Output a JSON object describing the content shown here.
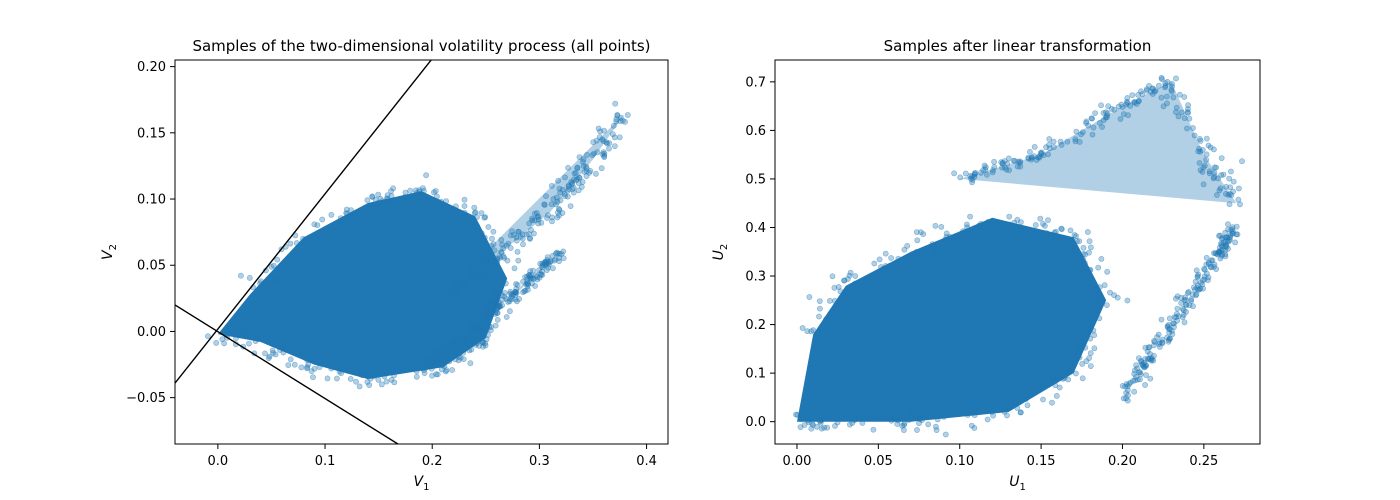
{
  "chart_data": [
    {
      "type": "scatter",
      "title": "Samples of the two-dimensional volatility process (all points)",
      "xlabel": "V",
      "xlabel_sub": "1",
      "ylabel": "V",
      "ylabel_sub": "2",
      "xlim": [
        -0.04,
        0.42
      ],
      "ylim": [
        -0.085,
        0.205
      ],
      "xticks": [
        0.0,
        0.1,
        0.2,
        0.3,
        0.4
      ],
      "xtick_labels": [
        "0.0",
        "0.1",
        "0.2",
        "0.3",
        "0.4"
      ],
      "yticks": [
        -0.05,
        0.0,
        0.05,
        0.1,
        0.15,
        0.2
      ],
      "ytick_labels": [
        "−0.05",
        "0.00",
        "0.05",
        "0.10",
        "0.15",
        "0.20"
      ],
      "marker_color": "#1f77b4",
      "lines": [
        {
          "color": "#000000",
          "x": [
            -0.04,
            0.2
          ],
          "y": [
            -0.039,
            0.206
          ]
        },
        {
          "color": "#000000",
          "x": [
            -0.04,
            0.168
          ],
          "y": [
            0.02,
            -0.085
          ]
        }
      ],
      "clusters": [
        {
          "x": [
            0.0,
            0.04,
            0.09,
            0.14,
            0.21,
            0.25,
            0.27,
            0.24,
            0.19,
            0.14,
            0.08,
            0.03
          ],
          "y": [
            -0.002,
            -0.008,
            -0.025,
            -0.036,
            -0.027,
            -0.005,
            0.04,
            0.087,
            0.106,
            0.097,
            0.071,
            0.028
          ]
        },
        {
          "x": [
            0.2,
            0.24,
            0.28,
            0.31,
            0.33,
            0.35,
            0.38
          ],
          "y": [
            0.02,
            0.045,
            0.07,
            0.09,
            0.11,
            0.13,
            0.165
          ]
        },
        {
          "x": [
            0.19,
            0.22,
            0.24,
            0.26,
            0.28,
            0.3,
            0.32
          ],
          "y": [
            -0.03,
            -0.01,
            0.0,
            0.02,
            0.03,
            0.045,
            0.06
          ]
        }
      ]
    },
    {
      "type": "scatter",
      "title": "Samples after linear transformation",
      "xlabel": "U",
      "xlabel_sub": "1",
      "ylabel": "U",
      "ylabel_sub": "2",
      "xlim": [
        -0.0135,
        0.2845
      ],
      "ylim": [
        -0.046,
        0.745
      ],
      "xticks": [
        0.0,
        0.05,
        0.1,
        0.15,
        0.2,
        0.25
      ],
      "xtick_labels": [
        "0.00",
        "0.05",
        "0.10",
        "0.15",
        "0.20",
        "0.25"
      ],
      "yticks": [
        0.0,
        0.1,
        0.2,
        0.3,
        0.4,
        0.5,
        0.6,
        0.7
      ],
      "ytick_labels": [
        "0.0",
        "0.1",
        "0.2",
        "0.3",
        "0.4",
        "0.5",
        "0.6",
        "0.7"
      ],
      "marker_color": "#1f77b4",
      "lines": [],
      "clusters": [
        {
          "x": [
            0.0,
            0.02,
            0.07,
            0.13,
            0.17,
            0.19,
            0.17,
            0.12,
            0.07,
            0.03,
            0.01
          ],
          "y": [
            0.0,
            0.0,
            0.0,
            0.02,
            0.1,
            0.25,
            0.38,
            0.42,
            0.35,
            0.28,
            0.18
          ]
        },
        {
          "x": [
            0.1,
            0.15,
            0.2,
            0.23,
            0.25,
            0.27
          ],
          "y": [
            0.5,
            0.55,
            0.65,
            0.7,
            0.55,
            0.45
          ]
        },
        {
          "x": [
            0.2,
            0.22,
            0.24,
            0.26,
            0.27
          ],
          "y": [
            0.05,
            0.15,
            0.25,
            0.35,
            0.4
          ]
        }
      ]
    }
  ]
}
